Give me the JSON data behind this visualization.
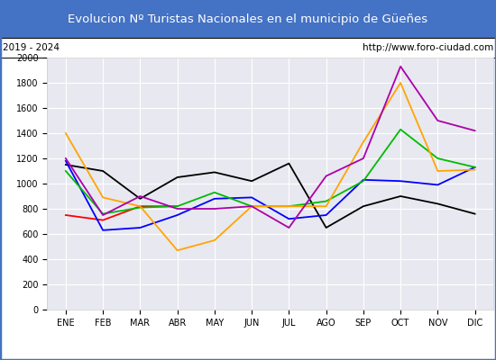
{
  "title": "Evolucion Nº Turistas Nacionales en el municipio de Güeñes",
  "subtitle_left": "2019 - 2024",
  "subtitle_right": "http://www.foro-ciudad.com",
  "months": [
    "ENE",
    "FEB",
    "MAR",
    "ABR",
    "MAY",
    "JUN",
    "JUL",
    "AGO",
    "SEP",
    "OCT",
    "NOV",
    "DIC"
  ],
  "series": {
    "2024": [
      750,
      710,
      820,
      820,
      null,
      null,
      null,
      null,
      null,
      null,
      null,
      null
    ],
    "2023": [
      1150,
      1100,
      880,
      1050,
      1090,
      1020,
      1160,
      650,
      820,
      900,
      840,
      760
    ],
    "2022": [
      1180,
      630,
      650,
      750,
      880,
      890,
      720,
      750,
      1030,
      1020,
      990,
      1130
    ],
    "2021": [
      1100,
      760,
      810,
      820,
      930,
      820,
      820,
      860,
      1020,
      1430,
      1200,
      1130
    ],
    "2020": [
      1400,
      890,
      820,
      470,
      550,
      820,
      820,
      820,
      1330,
      1800,
      1100,
      1110
    ],
    "2019": [
      1200,
      750,
      900,
      800,
      800,
      820,
      650,
      1060,
      1200,
      1930,
      1500,
      1420
    ]
  },
  "colors": {
    "2024": "#ff0000",
    "2023": "#000000",
    "2022": "#0000ff",
    "2021": "#00bb00",
    "2020": "#ffa500",
    "2019": "#aa00aa"
  },
  "ylim": [
    0,
    2000
  ],
  "yticks": [
    0,
    200,
    400,
    600,
    800,
    1000,
    1200,
    1400,
    1600,
    1800,
    2000
  ],
  "title_bg": "#4472c4",
  "title_color": "#ffffff",
  "plot_bg": "#e8e8f0",
  "grid_color": "#ffffff",
  "border_color": "#4472c4",
  "title_fontsize": 9.5,
  "tick_fontsize": 7,
  "legend_fontsize": 8
}
